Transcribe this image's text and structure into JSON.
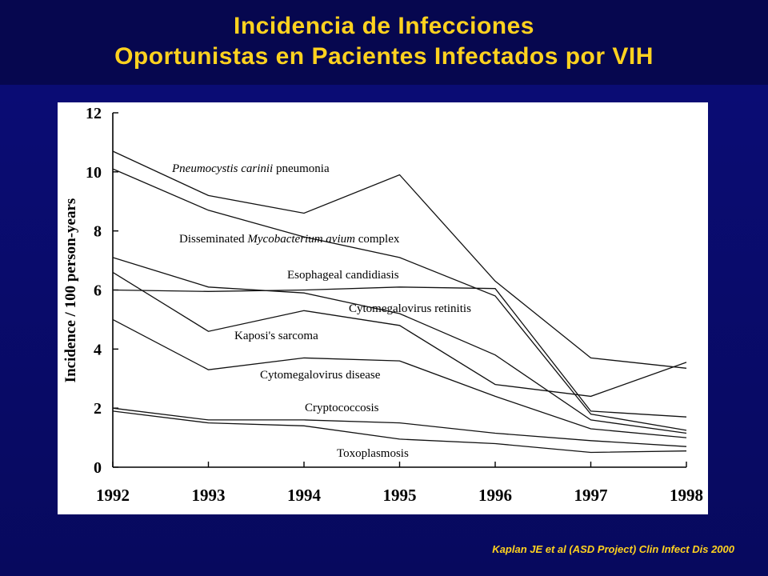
{
  "slide": {
    "title_line1": "Incidencia de Infecciones",
    "title_line2": "Oportunistas en Pacientes Infectados por VIH",
    "citation": "Kaplan JE et al (ASD Project) Clin Infect Dis 2000",
    "title_color": "#ffd21f",
    "background_color": "#0b0d78"
  },
  "chart_data": {
    "type": "line",
    "ylabel": "Incidence / 100 person-years",
    "xlabel": "",
    "x": [
      "1992",
      "1993",
      "1994",
      "1995",
      "1996",
      "1997",
      "1998"
    ],
    "xlim": [
      1992,
      1998
    ],
    "ylim": [
      0,
      12
    ],
    "yticks": [
      "0",
      "2",
      "4",
      "6",
      "8",
      "10",
      "12"
    ],
    "grid": false,
    "legend": "inline labels",
    "series": [
      {
        "name": "Pneumocystis carinii pneumonia",
        "values": [
          10.7,
          9.2,
          8.6,
          9.9,
          6.3,
          3.7,
          3.35
        ]
      },
      {
        "name": "Disseminated Mycobacterium avium complex",
        "values": [
          10.1,
          8.7,
          7.8,
          7.1,
          5.8,
          1.8,
          1.25
        ]
      },
      {
        "name": "Esophageal candidiasis",
        "values": [
          6.0,
          5.95,
          6.0,
          6.1,
          6.05,
          1.9,
          1.7
        ]
      },
      {
        "name": "Cytomegalovirus retinitis",
        "values": [
          7.1,
          6.1,
          5.9,
          5.2,
          3.8,
          1.6,
          1.15
        ]
      },
      {
        "name": "Kaposi's sarcoma",
        "values": [
          6.6,
          4.6,
          5.3,
          4.8,
          2.8,
          2.4,
          3.55
        ]
      },
      {
        "name": "Cytomegalovirus disease",
        "values": [
          5.0,
          3.3,
          3.7,
          3.6,
          2.4,
          1.3,
          1.0
        ]
      },
      {
        "name": "Cryptococcosis",
        "values": [
          2.0,
          1.6,
          1.6,
          1.5,
          1.15,
          0.9,
          0.7
        ]
      },
      {
        "name": "Toxoplasmosis",
        "values": [
          1.9,
          1.5,
          1.4,
          0.95,
          0.8,
          0.5,
          0.55
        ]
      }
    ],
    "annotations": [
      {
        "text_plain": "pneumonia",
        "text_italic": "Pneumocystis carinii",
        "series": "Pneumocystis carinii pneumonia"
      },
      {
        "text_pre": "Disseminated",
        "text_italic": "Mycobacterium avium",
        "text_post": "complex",
        "series": "Disseminated Mycobacterium avium complex"
      },
      {
        "text": "Esophageal candidiasis"
      },
      {
        "text": "Cytomegalovirus retinitis"
      },
      {
        "text": "Kaposi's sarcoma"
      },
      {
        "text": "Cytomegalovirus disease"
      },
      {
        "text": "Cryptococcosis"
      },
      {
        "text": "Toxoplasmosis"
      }
    ]
  }
}
